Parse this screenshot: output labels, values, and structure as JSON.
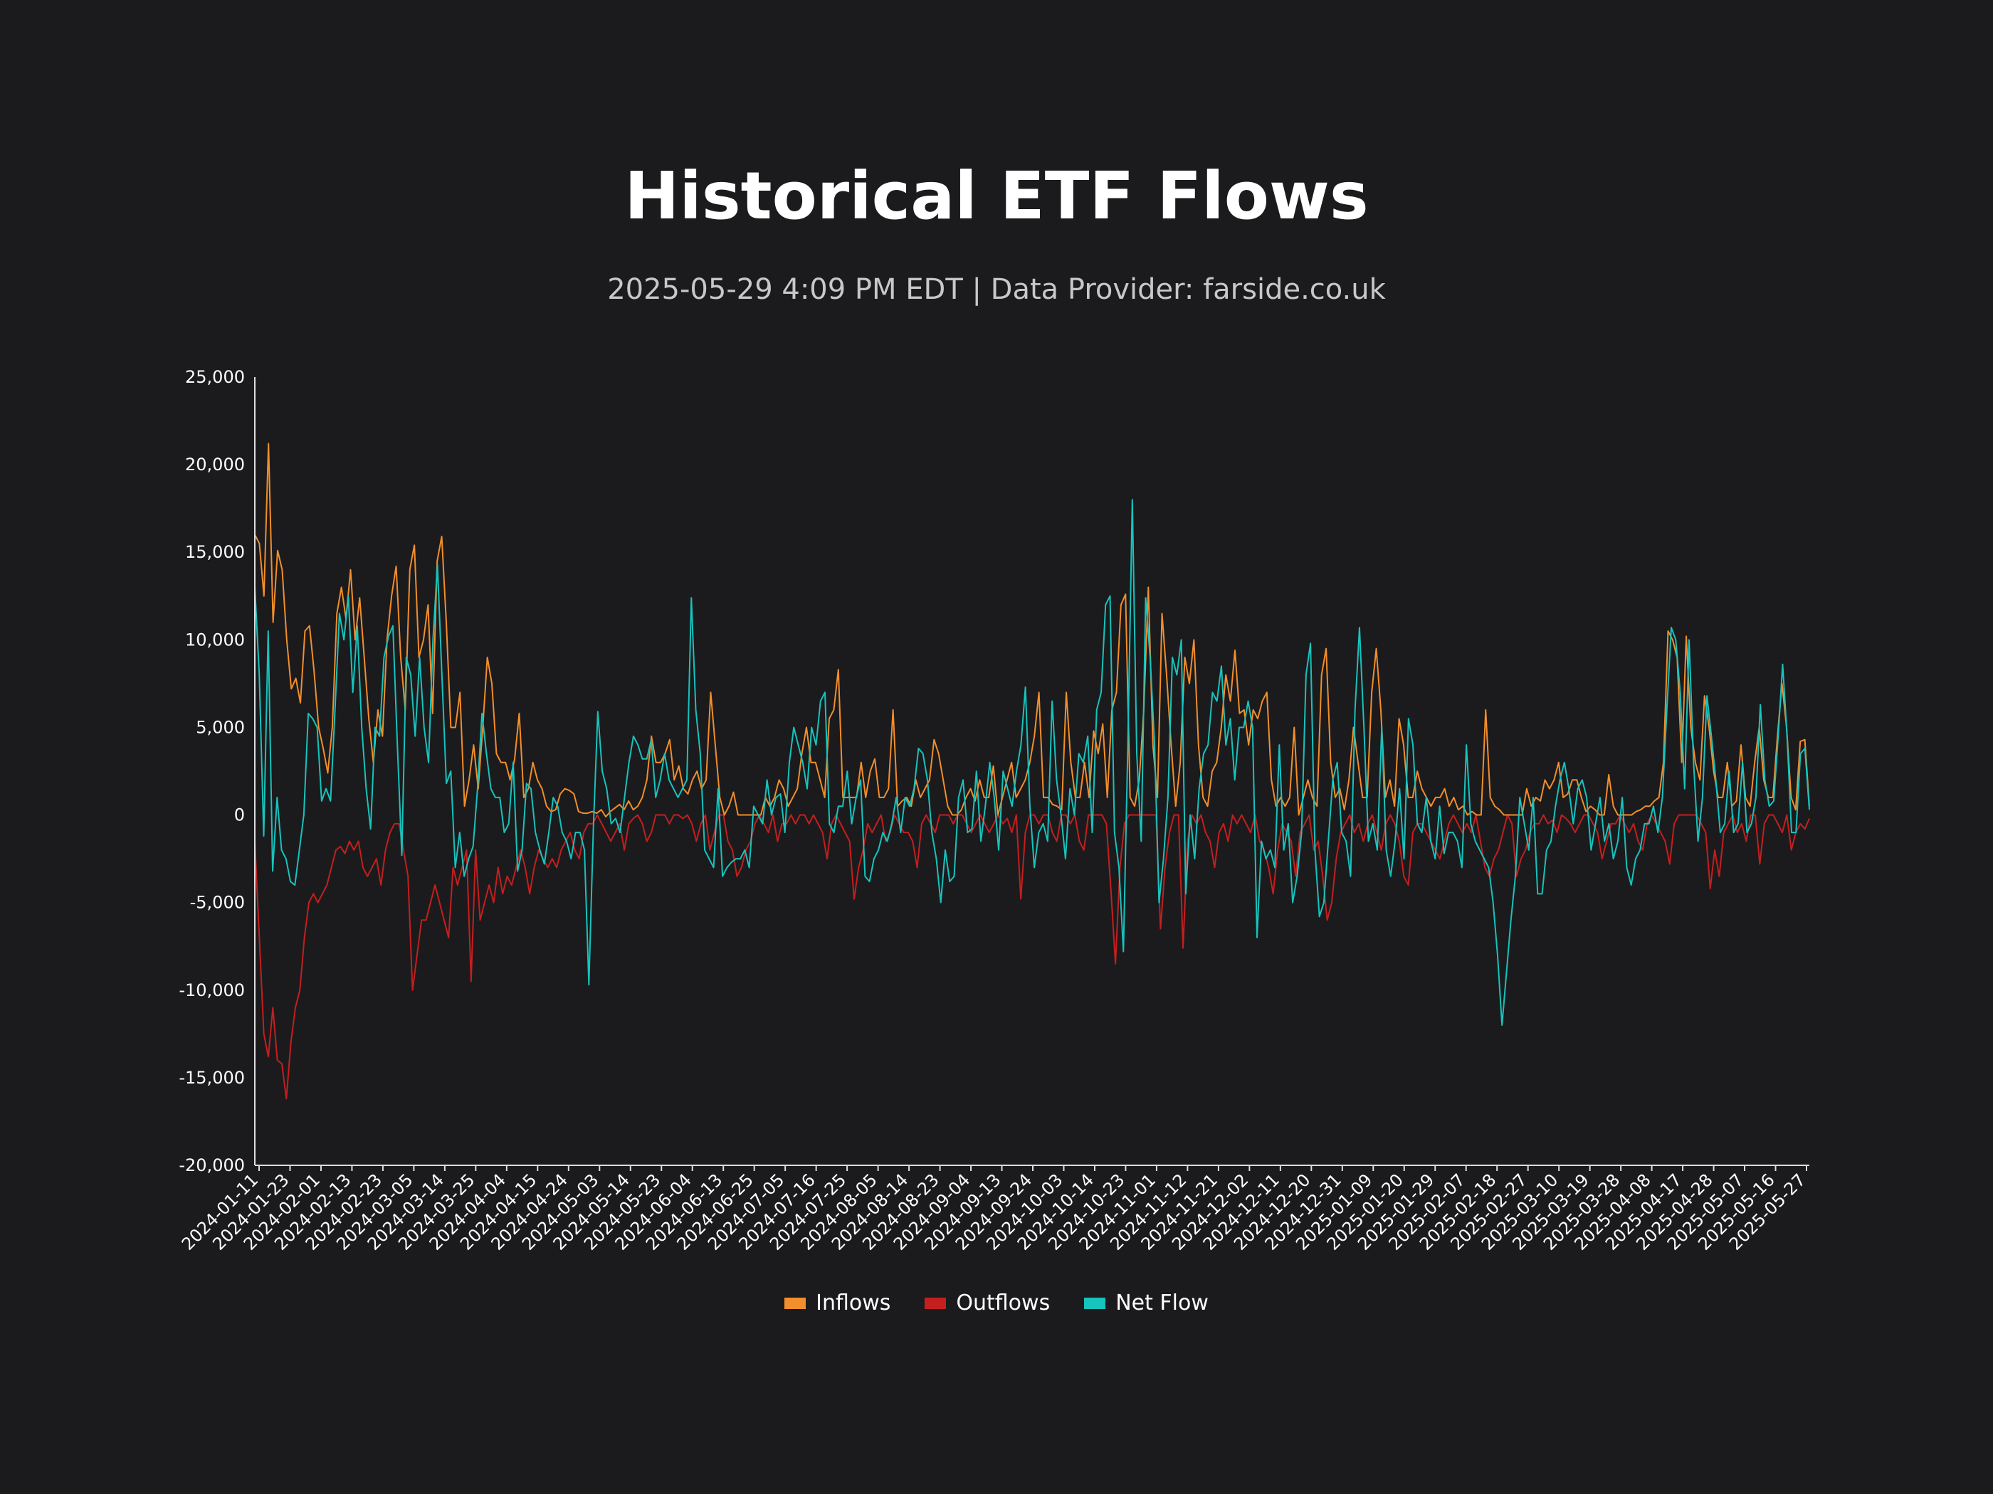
{
  "title": "Historical ETF Flows",
  "subtitle": "2025-05-29 4:09 PM EDT  |  Data Provider: farside.co.uk",
  "chart_data": {
    "type": "line",
    "title": "Historical ETF Flows",
    "xlabel": "",
    "ylabel": "",
    "ylim": [
      -20000,
      25000
    ],
    "y_ticks": [
      "-20,000",
      "-15,000",
      "-10,000",
      "-5,000",
      "0",
      "5,000",
      "10,000",
      "15,000",
      "20,000",
      "25,000"
    ],
    "y_tick_values": [
      -20000,
      -15000,
      -10000,
      -5000,
      0,
      5000,
      10000,
      15000,
      20000,
      25000
    ],
    "x_tick_labels": [
      "2024-01-11",
      "2024-01-23",
      "2024-02-01",
      "2024-02-13",
      "2024-02-23",
      "2024-03-05",
      "2024-03-14",
      "2024-03-25",
      "2024-04-04",
      "2024-04-15",
      "2024-04-24",
      "2024-05-03",
      "2024-05-14",
      "2024-05-23",
      "2024-06-04",
      "2024-06-13",
      "2024-06-25",
      "2024-07-05",
      "2024-07-16",
      "2024-07-25",
      "2024-08-05",
      "2024-08-14",
      "2024-08-23",
      "2024-09-04",
      "2024-09-13",
      "2024-09-24",
      "2024-10-03",
      "2024-10-14",
      "2024-10-23",
      "2024-11-01",
      "2024-11-12",
      "2024-11-21",
      "2024-12-02",
      "2024-12-11",
      "2024-12-20",
      "2024-12-31",
      "2025-01-09",
      "2025-01-20",
      "2025-01-29",
      "2025-02-07",
      "2025-02-18",
      "2025-02-27",
      "2025-03-10",
      "2025-03-19",
      "2025-03-28",
      "2025-04-08",
      "2025-04-17",
      "2025-04-28",
      "2025-05-07",
      "2025-05-16",
      "2025-05-27"
    ],
    "legend_position": "bottom-center",
    "grid": false,
    "series": [
      {
        "name": "Inflows",
        "color": "#f28e2b",
        "values": [
          16000,
          15500,
          12500,
          21200,
          11000,
          15100,
          14000,
          10000,
          7200,
          7800,
          6400,
          10500,
          10800,
          8200,
          5000,
          3800,
          2400,
          5000,
          11500,
          13000,
          11200,
          14000,
          10000,
          12400,
          9000,
          5500,
          3000,
          6000,
          4500,
          10000,
          12500,
          14200,
          9000,
          6000,
          14000,
          15400,
          9000,
          10000,
          12000,
          5800,
          14500,
          15900,
          11000,
          5000,
          5000,
          7000,
          500,
          2000,
          4000,
          1500,
          5000,
          9000,
          7500,
          3500,
          3000,
          3000,
          2000,
          3200,
          5800,
          1000,
          1500,
          3000,
          2000,
          1500,
          500,
          200,
          300,
          1200,
          1500,
          1400,
          1200,
          200,
          100,
          100,
          200,
          100,
          300,
          -100,
          200,
          400,
          600,
          300,
          800,
          300,
          500,
          1000,
          2000,
          4500,
          3000,
          3000,
          3500,
          4300,
          2000,
          2800,
          1500,
          1200,
          2000,
          2500,
          1500,
          2000,
          7000,
          4000,
          1000,
          0,
          500,
          1300,
          0,
          0,
          0,
          0,
          0,
          0,
          1000,
          500,
          1000,
          2000,
          1500,
          500,
          1000,
          1500,
          3500,
          5000,
          3000,
          3000,
          2000,
          1000,
          5500,
          6000,
          8300,
          1000,
          1000,
          1000,
          1000,
          3000,
          1000,
          2500,
          3200,
          1000,
          1000,
          1500,
          6000,
          500,
          800,
          1000,
          500,
          2000,
          1000,
          1500,
          2000,
          4300,
          3500,
          2000,
          500,
          0,
          0,
          300,
          1000,
          1500,
          800,
          2000,
          1000,
          1000,
          2800,
          0,
          1000,
          2000,
          3000,
          1000,
          1500,
          2000,
          3000,
          4500,
          7000,
          1000,
          1000,
          600,
          500,
          300,
          7000,
          3000,
          1000,
          1000,
          3000,
          1000,
          4800,
          3500,
          5200,
          1000,
          6000,
          7000,
          12000,
          12600,
          1000,
          500,
          2000,
          6000,
          13000,
          4000,
          1000,
          11500,
          8000,
          4000,
          500,
          3000,
          9000,
          7500,
          10000,
          4000,
          1000,
          500,
          2500,
          3000,
          5000,
          8000,
          6500,
          9400,
          5800,
          6000,
          4000,
          6000,
          5500,
          6500,
          7000,
          2000,
          500,
          1000,
          500,
          1000,
          5000,
          0,
          1000,
          2000,
          1000,
          500,
          8000,
          9500,
          3000,
          1000,
          1500,
          300,
          2000,
          5000,
          3000,
          1000,
          1000,
          7000,
          9500,
          6000,
          1000,
          2000,
          500,
          5500,
          4000,
          1000,
          1000,
          2500,
          1500,
          1000,
          500,
          1000,
          1000,
          1500,
          500,
          1000,
          300,
          500,
          0,
          200,
          0,
          0,
          6000,
          1000,
          500,
          300,
          0,
          0,
          0,
          0,
          0,
          1500,
          500,
          1000,
          800,
          2000,
          1500,
          2000,
          3000,
          1000,
          1200,
          2000,
          2000,
          1000,
          200,
          500,
          300,
          0,
          0,
          2300,
          500,
          0,
          0,
          0,
          0,
          200,
          300,
          500,
          500,
          800,
          1000,
          3000,
          10500,
          10000,
          9000,
          3000,
          10200,
          5000,
          3000,
          2000,
          6800,
          5000,
          2500,
          1000,
          1000,
          3000,
          500,
          800,
          4000,
          1000,
          500,
          3000,
          5000,
          2000,
          1000,
          1000,
          4500,
          7500,
          5000,
          1000,
          300,
          4200,
          4300,
          500
        ]
      },
      {
        "name": "Outflows",
        "color": "#c41f1f",
        "values": [
          -1500,
          -7000,
          -12500,
          -13800,
          -11000,
          -14000,
          -14200,
          -16200,
          -13000,
          -11000,
          -10000,
          -7000,
          -5000,
          -4500,
          -5000,
          -4500,
          -4000,
          -3000,
          -2000,
          -1800,
          -2200,
          -1500,
          -2000,
          -1500,
          -3000,
          -3500,
          -3000,
          -2500,
          -4000,
          -2000,
          -1000,
          -500,
          -500,
          -2000,
          -3500,
          -10000,
          -8000,
          -6000,
          -6000,
          -5000,
          -4000,
          -5000,
          -6000,
          -7000,
          -3000,
          -4000,
          -3000,
          -2000,
          -9500,
          -2000,
          -6000,
          -5000,
          -4000,
          -5000,
          -3000,
          -4500,
          -3500,
          -4000,
          -3000,
          -2000,
          -3000,
          -4500,
          -3000,
          -2000,
          -2500,
          -3000,
          -2500,
          -3000,
          -2000,
          -1500,
          -1000,
          -2000,
          -2500,
          -1000,
          -500,
          -500,
          0,
          -500,
          -1000,
          -1500,
          -1000,
          -500,
          -2000,
          -500,
          -200,
          0,
          -500,
          -1500,
          -1000,
          0,
          0,
          0,
          -500,
          0,
          0,
          -200,
          0,
          -500,
          -1500,
          -500,
          0,
          -2000,
          -1000,
          0,
          0,
          -1500,
          -2000,
          -3500,
          -3000,
          -2000,
          -1500,
          -500,
          0,
          -500,
          -1000,
          0,
          -1500,
          -500,
          -500,
          0,
          -500,
          0,
          0,
          -500,
          0,
          -500,
          -1000,
          -2500,
          -500,
          0,
          -500,
          -1000,
          -1500,
          -4800,
          -3000,
          -2000,
          -500,
          -1000,
          -500,
          0,
          -1500,
          -1000,
          0,
          -500,
          -1000,
          -1000,
          -1500,
          -3000,
          -500,
          0,
          -500,
          -1000,
          0,
          0,
          0,
          -500,
          0,
          0,
          -500,
          -1000,
          -500,
          0,
          -500,
          -1000,
          -500,
          0,
          -500,
          -200,
          -1000,
          0,
          -4800,
          -1000,
          0,
          0,
          -500,
          0,
          0,
          -1000,
          -1500,
          0,
          0,
          -500,
          0,
          -1500,
          -2000,
          0,
          0,
          0,
          0,
          -500,
          -4300,
          -8500,
          -3000,
          -500,
          0,
          0,
          0,
          0,
          0,
          0,
          0,
          -6500,
          -3000,
          -1000,
          0,
          0,
          -7600,
          -1500,
          0,
          -500,
          0,
          -1000,
          -1500,
          -3000,
          -1000,
          -500,
          -1500,
          0,
          -500,
          0,
          -500,
          -1000,
          0,
          -1500,
          -2000,
          -3000,
          -4500,
          -2000,
          -500,
          -1000,
          -1500,
          -3500,
          -1000,
          -500,
          0,
          -2000,
          -1500,
          -3500,
          -6000,
          -5000,
          -2500,
          -1000,
          -500,
          0,
          -1000,
          -500,
          -1500,
          -500,
          0,
          -1000,
          -2000,
          -500,
          0,
          -500,
          -1500,
          -3500,
          -4000,
          -1000,
          -500,
          -500,
          -1000,
          -1500,
          -2000,
          -2500,
          -1500,
          -500,
          0,
          -500,
          -1000,
          -500,
          -1000,
          0,
          -1500,
          -3000,
          -3500,
          -2500,
          -2000,
          -1000,
          0,
          -500,
          -3500,
          -2500,
          -2000,
          -1000,
          -500,
          -500,
          0,
          -500,
          -300,
          -1000,
          0,
          -200,
          -500,
          -1000,
          -500,
          0,
          0,
          -500,
          -1000,
          -2500,
          -1500,
          -500,
          -500,
          0,
          -500,
          -1000,
          -500,
          -1500,
          -2000,
          -500,
          0,
          -500,
          -1000,
          -1500,
          -2800,
          -500,
          0,
          0,
          0,
          0,
          0,
          -500,
          -1000,
          -4200,
          -2000,
          -3500,
          -1000,
          -500,
          0,
          -1000,
          -500,
          -1500,
          0,
          0,
          -2800,
          -500,
          0,
          0,
          -500,
          -1000,
          0,
          -2000,
          -1000,
          -500,
          -800,
          -200
        ]
      },
      {
        "name": "Net Flow",
        "color": "#17c3bd",
        "values": [
          13000,
          8000,
          -1200,
          10500,
          -3200,
          1000,
          -2000,
          -2500,
          -3800,
          -4000,
          -2000,
          0,
          5800,
          5500,
          5000,
          800,
          1500,
          800,
          6000,
          11500,
          10000,
          12500,
          7000,
          10800,
          5000,
          1500,
          -800,
          5000,
          4500,
          9000,
          10200,
          10800,
          4000,
          -2300,
          9000,
          8000,
          4500,
          9000,
          5000,
          3000,
          10000,
          14300,
          8000,
          1800,
          2500,
          -3000,
          -1000,
          -3500,
          -2500,
          -1800,
          1500,
          5800,
          3500,
          1500,
          1000,
          1000,
          -1000,
          -500,
          3000,
          -3200,
          -2000,
          1800,
          1500,
          -1000,
          -2000,
          -2800,
          -1000,
          1000,
          500,
          -1000,
          -1500,
          -2500,
          -1000,
          -1000,
          -2000,
          -9700,
          -800,
          5900,
          2500,
          1500,
          -500,
          -200,
          -1000,
          1000,
          3000,
          4500,
          4000,
          3200,
          3200,
          4300,
          1000,
          2000,
          3500,
          2000,
          1500,
          1000,
          1500,
          2000,
          12400,
          6000,
          3500,
          -2000,
          -2500,
          -3000,
          1500,
          -3500,
          -3000,
          -2700,
          -2500,
          -2500,
          -2000,
          -3000,
          500,
          0,
          -500,
          2000,
          0,
          1000,
          1200,
          -1000,
          3000,
          5000,
          4000,
          3000,
          1500,
          5000,
          4000,
          6500,
          7000,
          -500,
          -1000,
          500,
          500,
          2500,
          -500,
          1000,
          2000,
          -3500,
          -3800,
          -2500,
          -2000,
          -1000,
          -1500,
          -500,
          1000,
          -1000,
          1000,
          500,
          1500,
          3800,
          3500,
          2000,
          -1000,
          -2500,
          -5000,
          -2000,
          -3800,
          -3500,
          1000,
          2000,
          -1000,
          -800,
          2500,
          -1500,
          500,
          3000,
          1000,
          -2000,
          2500,
          1500,
          500,
          2500,
          4000,
          7300,
          500,
          -3000,
          -1000,
          -500,
          -1500,
          6500,
          2000,
          0,
          -2500,
          1500,
          0,
          3500,
          3000,
          4500,
          -1000,
          6000,
          7000,
          12000,
          12500,
          -1000,
          -3000,
          -7800,
          4000,
          18000,
          3500,
          -1500,
          12400,
          9000,
          4000,
          -5000,
          -2500,
          1000,
          9000,
          8000,
          10000,
          -4500,
          0,
          -2500,
          1500,
          3500,
          4000,
          7000,
          6500,
          8500,
          4000,
          5500,
          2000,
          5000,
          5000,
          6500,
          5000,
          -7000,
          -1500,
          -2500,
          -2000,
          -3000,
          4000,
          -2000,
          -500,
          -5000,
          -3500,
          -1000,
          8000,
          9800,
          -2000,
          -5800,
          -5000,
          -1500,
          2000,
          3000,
          -1000,
          -1500,
          -3500,
          6000,
          10700,
          5000,
          -1500,
          -500,
          -2000,
          5000,
          -2000,
          -3500,
          -1500,
          1500,
          -2500,
          5500,
          4000,
          -500,
          -1000,
          1000,
          -1500,
          -2500,
          500,
          -2200,
          -1000,
          -1000,
          -1500,
          -3000,
          4000,
          -500,
          -1500,
          -2000,
          -2500,
          -3000,
          -5000,
          -8000,
          -12000,
          -9000,
          -6000,
          -3500,
          1000,
          -500,
          -2000,
          1000,
          -4500,
          -4500,
          -2000,
          -1500,
          500,
          2000,
          3000,
          1500,
          -500,
          1500,
          2000,
          1000,
          -2000,
          -500,
          1000,
          -1500,
          -500,
          -2500,
          -1500,
          1000,
          -3000,
          -4000,
          -2500,
          -2000,
          -500,
          -500,
          500,
          -1000,
          1000,
          6000,
          10700,
          10000,
          7000,
          1500,
          10000,
          3000,
          -1500,
          1000,
          6800,
          4500,
          2000,
          -1000,
          -500,
          2500,
          -1000,
          -500,
          3000,
          -1000,
          -500,
          1000,
          6300,
          2000,
          500,
          800,
          4500,
          8600,
          4500,
          -1000,
          -1000,
          3500,
          3800,
          300
        ]
      }
    ]
  }
}
